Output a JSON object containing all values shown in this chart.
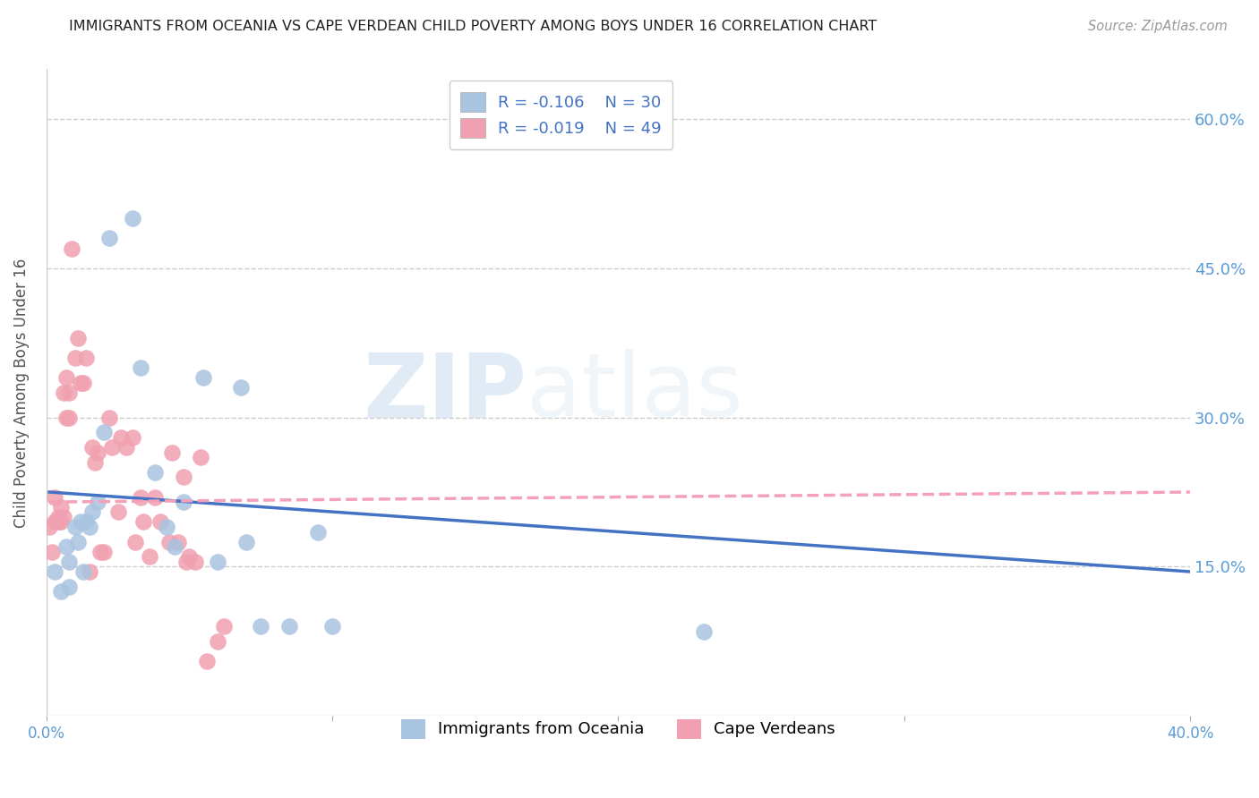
{
  "title": "IMMIGRANTS FROM OCEANIA VS CAPE VERDEAN CHILD POVERTY AMONG BOYS UNDER 16 CORRELATION CHART",
  "source": "Source: ZipAtlas.com",
  "ylabel": "Child Poverty Among Boys Under 16",
  "xlim": [
    0.0,
    0.4
  ],
  "ylim": [
    0.0,
    0.65
  ],
  "yticks": [
    0.0,
    0.15,
    0.3,
    0.45,
    0.6
  ],
  "ytick_labels": [
    "",
    "15.0%",
    "30.0%",
    "45.0%",
    "60.0%"
  ],
  "xticks": [
    0.0,
    0.1,
    0.2,
    0.3,
    0.4
  ],
  "xtick_labels": [
    "0.0%",
    "",
    "",
    "",
    "40.0%"
  ],
  "legend_label1": "Immigrants from Oceania",
  "legend_label2": "Cape Verdeans",
  "r1": -0.106,
  "n1": 30,
  "r2": -0.019,
  "n2": 49,
  "color_blue": "#a8c4e0",
  "color_pink": "#f0a0b0",
  "line_blue": "#4472c4",
  "line_pink": "#f4a0b8",
  "watermark_zip": "ZIP",
  "watermark_atlas": "atlas",
  "title_color": "#222222",
  "axis_label_color": "#555555",
  "tick_color": "#5b9bd5",
  "grid_color": "#cccccc",
  "oceania_x": [
    0.003,
    0.005,
    0.007,
    0.008,
    0.008,
    0.01,
    0.011,
    0.012,
    0.013,
    0.014,
    0.015,
    0.016,
    0.018,
    0.02,
    0.022,
    0.03,
    0.033,
    0.038,
    0.042,
    0.045,
    0.048,
    0.055,
    0.06,
    0.068,
    0.07,
    0.075,
    0.085,
    0.095,
    0.1,
    0.23
  ],
  "oceania_y": [
    0.145,
    0.125,
    0.17,
    0.13,
    0.155,
    0.19,
    0.175,
    0.195,
    0.145,
    0.195,
    0.19,
    0.205,
    0.215,
    0.285,
    0.48,
    0.5,
    0.35,
    0.245,
    0.19,
    0.17,
    0.215,
    0.34,
    0.155,
    0.33,
    0.175,
    0.09,
    0.09,
    0.185,
    0.09,
    0.085
  ],
  "capeverd_x": [
    0.001,
    0.002,
    0.003,
    0.003,
    0.004,
    0.004,
    0.005,
    0.005,
    0.006,
    0.006,
    0.007,
    0.007,
    0.008,
    0.008,
    0.009,
    0.01,
    0.011,
    0.012,
    0.013,
    0.014,
    0.015,
    0.016,
    0.017,
    0.018,
    0.019,
    0.02,
    0.022,
    0.023,
    0.025,
    0.026,
    0.028,
    0.03,
    0.031,
    0.033,
    0.034,
    0.036,
    0.038,
    0.04,
    0.043,
    0.044,
    0.046,
    0.048,
    0.049,
    0.05,
    0.052,
    0.054,
    0.056,
    0.06,
    0.062
  ],
  "capeverd_y": [
    0.19,
    0.165,
    0.195,
    0.22,
    0.195,
    0.2,
    0.21,
    0.195,
    0.2,
    0.325,
    0.3,
    0.34,
    0.3,
    0.325,
    0.47,
    0.36,
    0.38,
    0.335,
    0.335,
    0.36,
    0.145,
    0.27,
    0.255,
    0.265,
    0.165,
    0.165,
    0.3,
    0.27,
    0.205,
    0.28,
    0.27,
    0.28,
    0.175,
    0.22,
    0.195,
    0.16,
    0.22,
    0.195,
    0.175,
    0.265,
    0.175,
    0.24,
    0.155,
    0.16,
    0.155,
    0.26,
    0.055,
    0.075,
    0.09
  ],
  "blue_line_x": [
    0.001,
    0.4
  ],
  "blue_line_y": [
    0.225,
    0.145
  ],
  "pink_line_x": [
    0.001,
    0.4
  ],
  "pink_line_y": [
    0.215,
    0.225
  ]
}
